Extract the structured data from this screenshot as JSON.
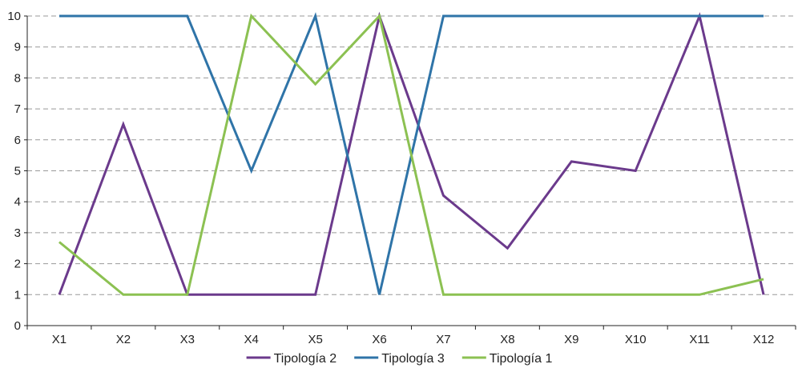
{
  "chart_data": {
    "type": "line",
    "categories": [
      "X1",
      "X2",
      "X3",
      "X4",
      "X5",
      "X6",
      "X7",
      "X8",
      "X9",
      "X10",
      "X11",
      "X12"
    ],
    "ylim": [
      0,
      10
    ],
    "yticks": [
      "0",
      "1",
      "2",
      "3",
      "4",
      "5",
      "6",
      "7",
      "8",
      "9",
      "10"
    ],
    "grid": true,
    "legend_position": "bottom",
    "series": [
      {
        "name": "Tipología 2",
        "color": "#6b3a8c",
        "values": [
          1,
          6.5,
          1,
          1,
          1,
          10,
          4.2,
          2.5,
          5.3,
          5,
          10,
          1
        ]
      },
      {
        "name": "Tipología 3",
        "color": "#2f74a8",
        "values": [
          10,
          10,
          10,
          5,
          10,
          1,
          10,
          10,
          10,
          10,
          10,
          10
        ]
      },
      {
        "name": "Tipología 1",
        "color": "#8cc152",
        "values": [
          2.7,
          1,
          1,
          10,
          7.8,
          10,
          1,
          1,
          1,
          1,
          1,
          1.5
        ]
      }
    ]
  }
}
